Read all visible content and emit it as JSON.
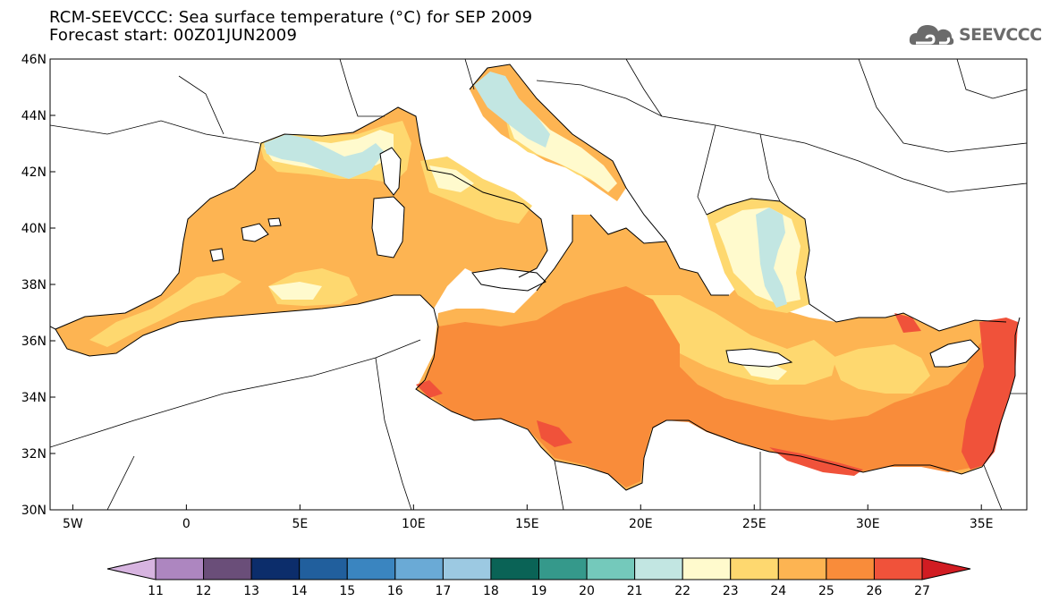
{
  "header": {
    "title": "RCM-SEEVCCC: Sea surface temperature (°C) for SEP 2009",
    "subtitle": "Forecast start: 00Z01JUN2009",
    "logo_text": "SEEVCCC"
  },
  "map": {
    "region": "Mediterranean Sea",
    "lon_range": [
      -6,
      37
    ],
    "lat_range": [
      30,
      46
    ],
    "x_ticks": [
      {
        "lon": -5,
        "label": "5W"
      },
      {
        "lon": 0,
        "label": "0"
      },
      {
        "lon": 5,
        "label": "5E"
      },
      {
        "lon": 10,
        "label": "10E"
      },
      {
        "lon": 15,
        "label": "15E"
      },
      {
        "lon": 20,
        "label": "20E"
      },
      {
        "lon": 25,
        "label": "25E"
      },
      {
        "lon": 30,
        "label": "30E"
      },
      {
        "lon": 35,
        "label": "35E"
      }
    ],
    "y_ticks": [
      {
        "lat": 46,
        "label": "46N"
      },
      {
        "lat": 44,
        "label": "44N"
      },
      {
        "lat": 42,
        "label": "42N"
      },
      {
        "lat": 40,
        "label": "40N"
      },
      {
        "lat": 38,
        "label": "38N"
      },
      {
        "lat": 36,
        "label": "36N"
      },
      {
        "lat": 34,
        "label": "34N"
      },
      {
        "lat": 32,
        "label": "32N"
      },
      {
        "lat": 30,
        "label": "30N"
      }
    ],
    "colorbar": {
      "labels": [
        "11",
        "12",
        "13",
        "14",
        "15",
        "16",
        "17",
        "18",
        "19",
        "20",
        "21",
        "22",
        "23",
        "24",
        "25",
        "26",
        "27"
      ],
      "colors": [
        "#d7b4e0",
        "#ad86c0",
        "#6a4e79",
        "#0c2d6b",
        "#215f9d",
        "#3a85c0",
        "#6aaad6",
        "#9cc9e2",
        "#0a6356",
        "#35998b",
        "#74c9bb",
        "#c2e6e2",
        "#fffacd",
        "#fed86f",
        "#fdb452",
        "#f98c3a",
        "#f0523a",
        "#d11c22"
      ]
    }
  }
}
